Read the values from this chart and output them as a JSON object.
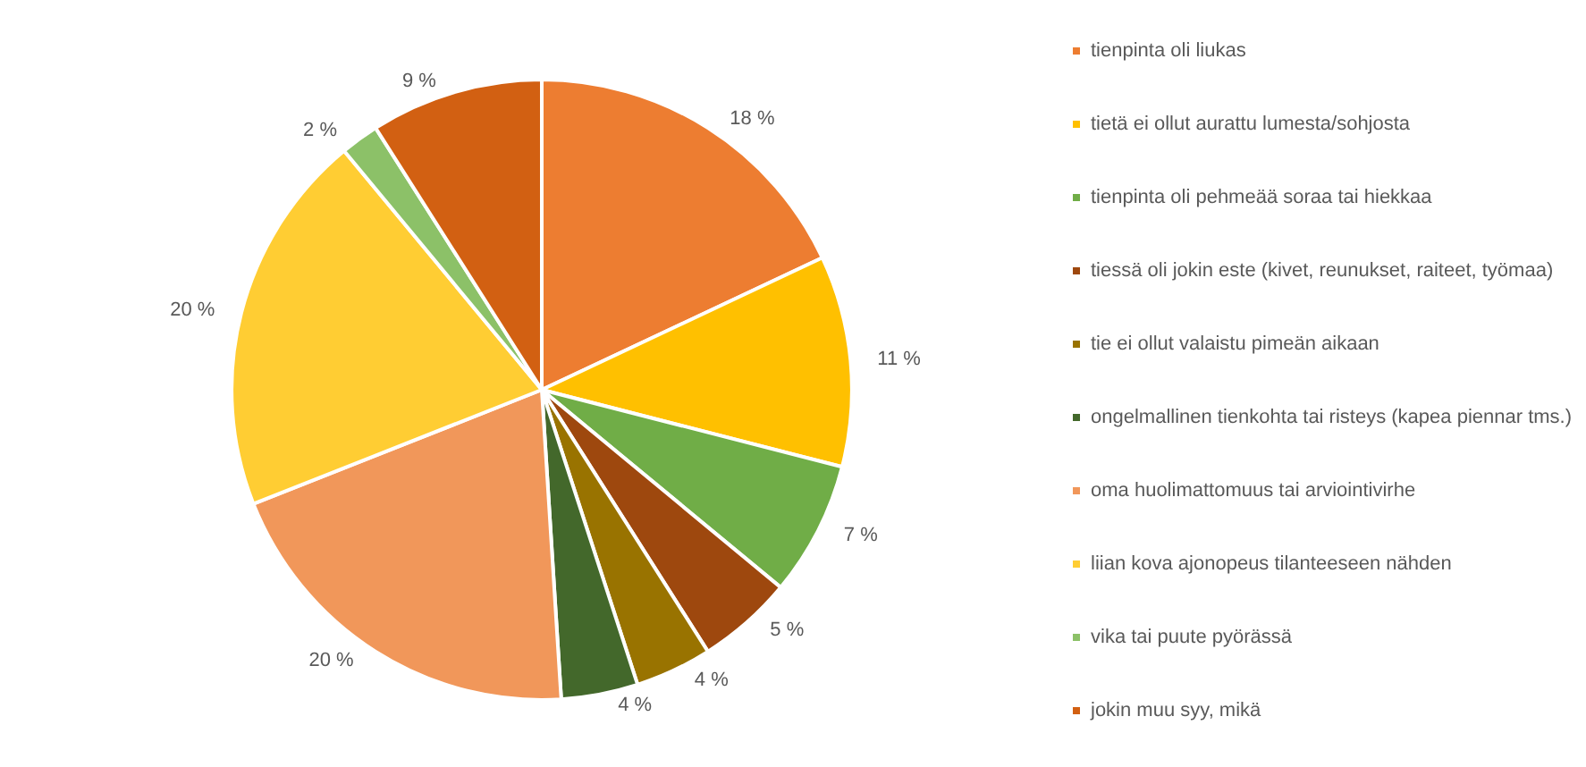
{
  "chart_data": {
    "type": "pie",
    "categories": [
      "tienpinta oli liukas",
      "tietä ei ollut aurattu lumesta/sohjosta",
      "tienpinta oli pehmeää soraa tai hiekkaa",
      "tiessä oli jokin este (kivet, reunukset, raiteet, työmaa)",
      "tie ei ollut valaistu pimeän aikaan",
      "ongelmallinen tienkohta tai risteys (kapea piennar tms.)",
      "oma huolimattomuus tai arviointivirhe",
      "liian kova ajonopeus tilanteeseen nähden",
      "vika tai puute pyörässä",
      "jokin muu syy, mikä"
    ],
    "values": [
      18,
      11,
      7,
      5,
      4,
      4,
      20,
      20,
      2,
      9
    ],
    "value_labels": [
      "18 %",
      "11 %",
      "7 %",
      "5 %",
      "4 %",
      "4 %",
      "20 %",
      "20 %",
      "2 %",
      "9 %"
    ],
    "colors": [
      "#ed7d31",
      "#ffc000",
      "#70ad47",
      "#9e480e",
      "#997300",
      "#43682b",
      "#f1975a",
      "#ffcd33",
      "#8cc168",
      "#d26012"
    ],
    "legend": "right"
  }
}
